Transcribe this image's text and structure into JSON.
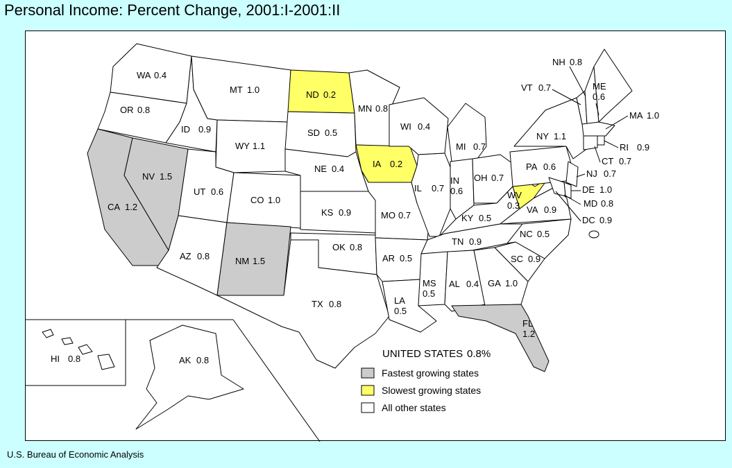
{
  "title": "Personal Income:  Percent Change, 2001:I-2001:II",
  "source": "U.S. Bureau of Economic Analysis",
  "national": {
    "label": "UNITED STATES",
    "value": "0.8%"
  },
  "colors": {
    "fastest": "#cccccc",
    "slowest": "#ffff66",
    "other": "#ffffff",
    "background": "#ccffff"
  },
  "legend": [
    {
      "category": "fastest",
      "label": "Fastest growing states"
    },
    {
      "category": "slowest",
      "label": "Slowest growing states"
    },
    {
      "category": "other",
      "label": "All other states"
    }
  ],
  "states": [
    {
      "abbr": "WA",
      "value": "0.4",
      "category": "other"
    },
    {
      "abbr": "OR",
      "value": "0.8",
      "category": "other"
    },
    {
      "abbr": "CA",
      "value": "1.2",
      "category": "fastest"
    },
    {
      "abbr": "NV",
      "value": "1.5",
      "category": "fastest"
    },
    {
      "abbr": "ID",
      "value": "0.9",
      "category": "other"
    },
    {
      "abbr": "MT",
      "value": "1.0",
      "category": "other"
    },
    {
      "abbr": "WY",
      "value": "1.1",
      "category": "other"
    },
    {
      "abbr": "UT",
      "value": "0.6",
      "category": "other"
    },
    {
      "abbr": "AZ",
      "value": "0.8",
      "category": "other"
    },
    {
      "abbr": "CO",
      "value": "1.0",
      "category": "other"
    },
    {
      "abbr": "NM",
      "value": "1.5",
      "category": "fastest"
    },
    {
      "abbr": "ND",
      "value": "0.2",
      "category": "slowest"
    },
    {
      "abbr": "SD",
      "value": "0.5",
      "category": "other"
    },
    {
      "abbr": "NE",
      "value": "0.4",
      "category": "other"
    },
    {
      "abbr": "KS",
      "value": "0.9",
      "category": "other"
    },
    {
      "abbr": "OK",
      "value": "0.8",
      "category": "other"
    },
    {
      "abbr": "TX",
      "value": "0.8",
      "category": "other"
    },
    {
      "abbr": "MN",
      "value": "0.8",
      "category": "other"
    },
    {
      "abbr": "IA",
      "value": "0.2",
      "category": "slowest"
    },
    {
      "abbr": "MO",
      "value": "0.7",
      "category": "other"
    },
    {
      "abbr": "AR",
      "value": "0.5",
      "category": "other"
    },
    {
      "abbr": "LA",
      "value": "0.5",
      "category": "other"
    },
    {
      "abbr": "WI",
      "value": "0.4",
      "category": "other"
    },
    {
      "abbr": "IL",
      "value": "0.7",
      "category": "other"
    },
    {
      "abbr": "MI",
      "value": "0.7",
      "category": "other"
    },
    {
      "abbr": "IN",
      "value": "0.6",
      "category": "other"
    },
    {
      "abbr": "OH",
      "value": "0.7",
      "category": "other"
    },
    {
      "abbr": "KY",
      "value": "0.5",
      "category": "other"
    },
    {
      "abbr": "TN",
      "value": "0.9",
      "category": "other"
    },
    {
      "abbr": "MS",
      "value": "0.5",
      "category": "other"
    },
    {
      "abbr": "AL",
      "value": "0.4",
      "category": "other"
    },
    {
      "abbr": "GA",
      "value": "1.0",
      "category": "other"
    },
    {
      "abbr": "FL",
      "value": "1.2",
      "category": "fastest"
    },
    {
      "abbr": "SC",
      "value": "0.9",
      "category": "other"
    },
    {
      "abbr": "NC",
      "value": "0.5",
      "category": "other"
    },
    {
      "abbr": "VA",
      "value": "0.9",
      "category": "other"
    },
    {
      "abbr": "WV",
      "value": "0.3",
      "category": "slowest"
    },
    {
      "abbr": "PA",
      "value": "0.6",
      "category": "other"
    },
    {
      "abbr": "NY",
      "value": "1.1",
      "category": "other"
    },
    {
      "abbr": "VT",
      "value": "0.7",
      "category": "other"
    },
    {
      "abbr": "NH",
      "value": "0.8",
      "category": "other"
    },
    {
      "abbr": "ME",
      "value": "0.6",
      "category": "other"
    },
    {
      "abbr": "MA",
      "value": "1.0",
      "category": "other"
    },
    {
      "abbr": "RI",
      "value": "0.9",
      "category": "other"
    },
    {
      "abbr": "CT",
      "value": "0.7",
      "category": "other"
    },
    {
      "abbr": "NJ",
      "value": "0.7",
      "category": "other"
    },
    {
      "abbr": "DE",
      "value": "1.0",
      "category": "other"
    },
    {
      "abbr": "MD",
      "value": "0.8",
      "category": "other"
    },
    {
      "abbr": "DC",
      "value": "0.9",
      "category": "other"
    },
    {
      "abbr": "HI",
      "value": "0.8",
      "category": "other"
    },
    {
      "abbr": "AK",
      "value": "0.8",
      "category": "other"
    }
  ]
}
